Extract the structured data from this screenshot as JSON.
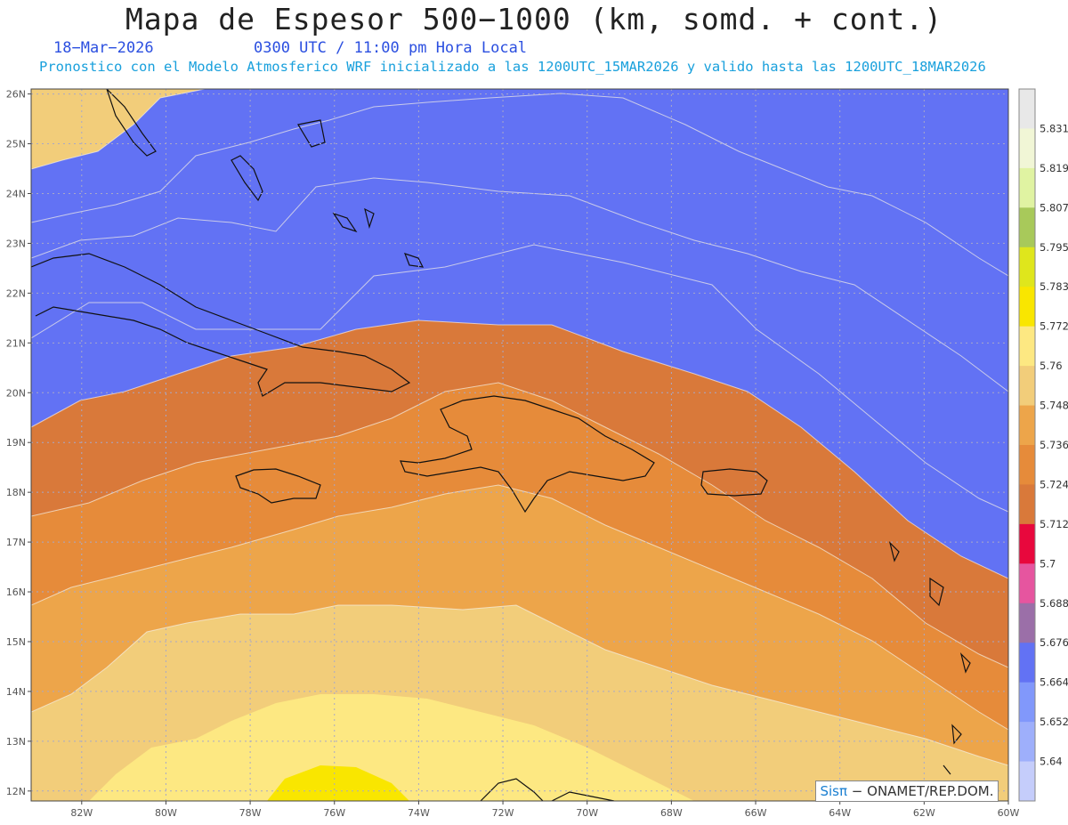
{
  "header": {
    "title": "Mapa de Espesor 500−1000 (km, somd. + cont.)",
    "date": "18−Mar−2026",
    "time": "0300 UTC / 11:00 pm Hora Local",
    "forecast_note": "Pronostico con el Modelo Atmosferico WRF inicializado a las 1200UTC_15MAR2026 y valido hasta las  1200UTC_18MAR2026"
  },
  "map": {
    "lon_range": [
      -83.2,
      -60
    ],
    "lat_range": [
      11.8,
      26.1
    ],
    "lon_ticks": [
      "82W",
      "80W",
      "78W",
      "76W",
      "74W",
      "72W",
      "70W",
      "68W",
      "66W",
      "64W",
      "62W",
      "60W"
    ],
    "lat_ticks": [
      "12N",
      "13N",
      "14N",
      "15N",
      "16N",
      "17N",
      "18N",
      "19N",
      "20N",
      "21N",
      "22N",
      "23N",
      "24N",
      "25N",
      "26N"
    ],
    "grid": true
  },
  "colorbar": {
    "labels": [
      "5.64",
      "5.652",
      "5.664",
      "5.676",
      "5.688",
      "5.7",
      "5.712",
      "5.724",
      "5.736",
      "5.748",
      "5.76",
      "5.772",
      "5.783",
      "5.795",
      "5.807",
      "5.819",
      "5.831"
    ],
    "colors": [
      "#c5cdfb",
      "#9eaffb",
      "#8198fb",
      "#6272f4",
      "#9b6fa8",
      "#e6559f",
      "#e8083d",
      "#d9793a",
      "#e68b3a",
      "#eda54a",
      "#f2cd7a",
      "#fde882",
      "#f9e600",
      "#dfe61c",
      "#a8c95a",
      "#e0f3a2",
      "#f1f6d6",
      "#e8e8e8"
    ]
  },
  "credit": {
    "brand": "Sisπ",
    "org": " − ONAMET/REP.DOM."
  }
}
